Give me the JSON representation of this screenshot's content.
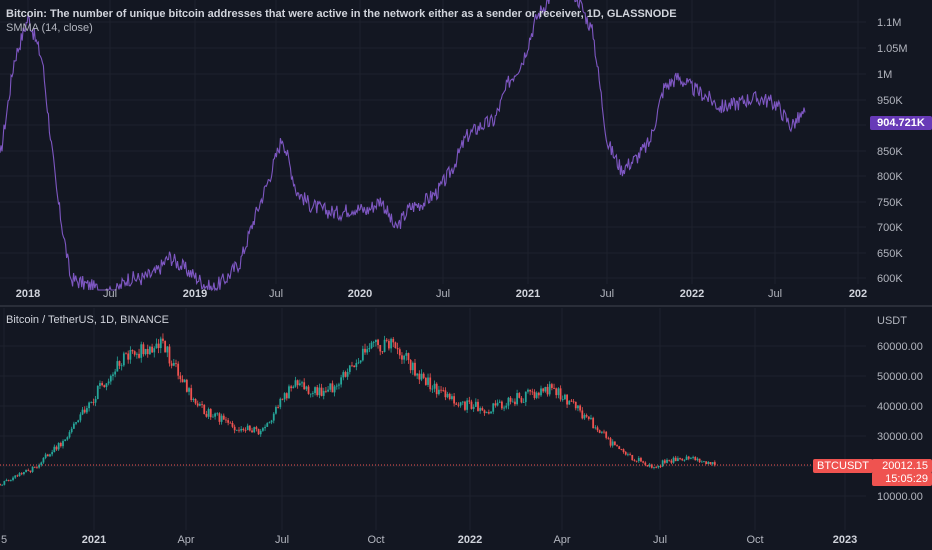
{
  "top_pane": {
    "title": "Bitcoin: The number of unique bitcoin addresses that were active in the network either as a sender or receiver, 1D, GLASSNODE",
    "indicator": "SMMA (14, close)",
    "price_label": "904.721K",
    "price_color": "#673ab7",
    "line_color": "#7e57c2",
    "y_ticks": [
      "1.1M",
      "1.05M",
      "1M",
      "950K",
      "900K",
      "850K",
      "800K",
      "750K",
      "700K",
      "650K",
      "600K"
    ],
    "x_ticks": [
      "2018",
      "Jul",
      "2019",
      "Jul",
      "2020",
      "Jul",
      "2021",
      "Jul",
      "2022",
      "Jul",
      "202"
    ],
    "x_ticks_bold": [
      true,
      false,
      true,
      false,
      true,
      false,
      true,
      false,
      true,
      false,
      true
    ]
  },
  "bottom_pane": {
    "title": "Bitcoin / TetherUS, 1D, BINANCE",
    "currency": "USDT",
    "y_ticks": [
      "60000.00",
      "50000.00",
      "40000.00",
      "30000.00",
      "20000.00",
      "10000.00"
    ],
    "x_ticks": [
      "5",
      "2021",
      "Apr",
      "Jul",
      "Oct",
      "2022",
      "Apr",
      "Jul",
      "Oct",
      "2023"
    ],
    "x_ticks_bold": [
      false,
      true,
      false,
      false,
      false,
      true,
      false,
      false,
      false,
      true
    ],
    "symbol_badge": "BTCUSDT",
    "price_badge": "20012.15",
    "timer_badge": "15:05:29",
    "up_color": "#26a69a",
    "down_color": "#ef5350"
  },
  "chart_data": [
    {
      "type": "line",
      "title": "Bitcoin: The number of unique bitcoin addresses that were active in the network either as a sender or receiver, 1D, GLASSNODE",
      "series": [
        {
          "name": "SMMA (14, close)",
          "x": [
            "2017-11",
            "2017-12",
            "2018-01",
            "2018-02",
            "2018-03",
            "2018-04",
            "2018-05",
            "2018-06",
            "2018-07",
            "2018-08",
            "2018-09",
            "2018-10",
            "2018-11",
            "2018-12",
            "2019-01",
            "2019-02",
            "2019-03",
            "2019-04",
            "2019-05",
            "2019-06",
            "2019-07",
            "2019-08",
            "2019-09",
            "2019-10",
            "2019-11",
            "2019-12",
            "2020-01",
            "2020-02",
            "2020-03",
            "2020-04",
            "2020-05",
            "2020-06",
            "2020-07",
            "2020-08",
            "2020-09",
            "2020-10",
            "2020-11",
            "2020-12",
            "2021-01",
            "2021-02",
            "2021-03",
            "2021-04",
            "2021-05",
            "2021-06",
            "2021-07",
            "2021-08",
            "2021-09",
            "2021-10",
            "2021-11",
            "2021-12",
            "2022-01",
            "2022-02",
            "2022-03",
            "2022-04",
            "2022-05",
            "2022-06",
            "2022-07",
            "2022-08"
          ],
          "values": [
            820000,
            1000000,
            1080000,
            1000000,
            760000,
            600000,
            590000,
            580000,
            570000,
            600000,
            600000,
            610000,
            640000,
            620000,
            600000,
            580000,
            600000,
            630000,
            710000,
            780000,
            860000,
            760000,
            735000,
            725000,
            720000,
            730000,
            725000,
            745000,
            690000,
            730000,
            740000,
            760000,
            800000,
            860000,
            880000,
            890000,
            960000,
            1000000,
            1080000,
            1120000,
            1150000,
            1110000,
            1050000,
            850000,
            800000,
            820000,
            850000,
            950000,
            970000,
            950000,
            935000,
            915000,
            920000,
            930000,
            930000,
            920000,
            880000,
            905000
          ]
        }
      ],
      "ylim": [
        590000,
        1130000
      ]
    },
    {
      "type": "candlestick",
      "title": "Bitcoin / TetherUS, 1D, BINANCE",
      "x": [
        "2020-11",
        "2020-12",
        "2021-01",
        "2021-02",
        "2021-03",
        "2021-04",
        "2021-05",
        "2021-06",
        "2021-07",
        "2021-08",
        "2021-09",
        "2021-10",
        "2021-11",
        "2021-12",
        "2022-01",
        "2022-02",
        "2022-03",
        "2022-04",
        "2022-05",
        "2022-06",
        "2022-07",
        "2022-08",
        "2022-09"
      ],
      "values": [
        14000,
        19000,
        29000,
        45000,
        58000,
        60000,
        40000,
        34000,
        31000,
        47000,
        44000,
        57000,
        62000,
        49000,
        41000,
        39000,
        43000,
        46000,
        36000,
        25000,
        20000,
        23000,
        20012.15
      ],
      "ylim": [
        8000,
        68000
      ]
    }
  ]
}
